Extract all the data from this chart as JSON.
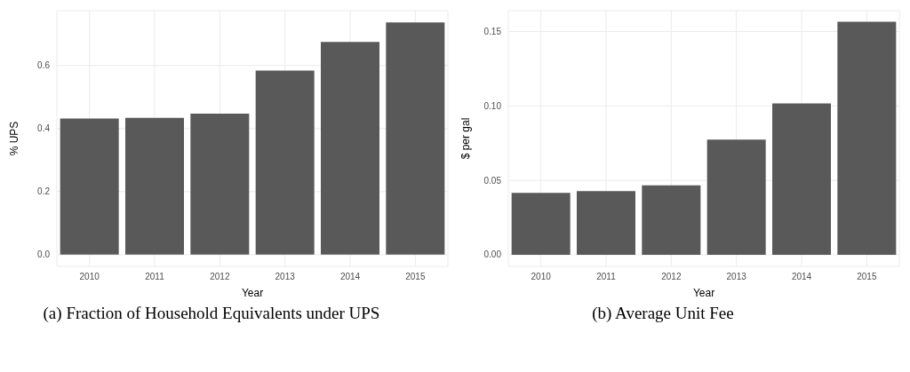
{
  "chart_data": [
    {
      "type": "bar",
      "categories": [
        "2010",
        "2011",
        "2012",
        "2013",
        "2014",
        "2015"
      ],
      "values": [
        0.432,
        0.434,
        0.447,
        0.584,
        0.675,
        0.737
      ],
      "color": "#595959",
      "xlabel": "Year",
      "ylabel": "% UPS",
      "ylim": [
        -0.037,
        0.774
      ],
      "yticks": [
        {
          "value": 0,
          "label": "0.0"
        },
        {
          "value": 0.2,
          "label": "0.2"
        },
        {
          "value": 0.4,
          "label": "0.4"
        },
        {
          "value": 0.6,
          "label": "0.6"
        }
      ],
      "grid": true,
      "annotations": [
        "(a) Fraction of Household Equivalents under UPS"
      ]
    },
    {
      "type": "bar",
      "categories": [
        "2010",
        "2011",
        "2012",
        "2013",
        "2014",
        "2015"
      ],
      "values": [
        0.0416,
        0.0427,
        0.0466,
        0.0774,
        0.1016,
        0.1566
      ],
      "color": "#595959",
      "xlabel": "Year",
      "ylabel": "$ per gal",
      "ylim": [
        -0.0078,
        0.164
      ],
      "yticks": [
        {
          "value": 0,
          "label": "0.00"
        },
        {
          "value": 0.05,
          "label": "0.05"
        },
        {
          "value": 0.1,
          "label": "0.10"
        },
        {
          "value": 0.15,
          "label": "0.15"
        }
      ],
      "grid": true,
      "annotations": [
        "(b) Average Unit Fee"
      ]
    }
  ]
}
